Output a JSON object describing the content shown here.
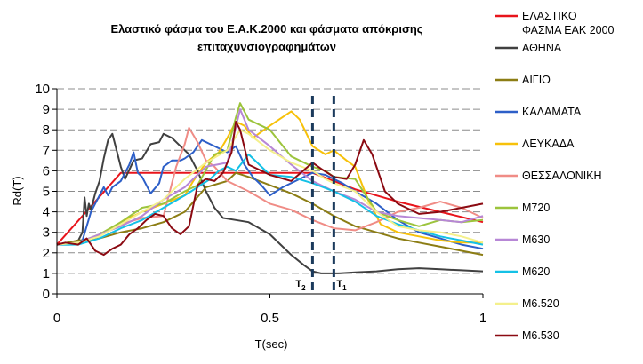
{
  "chart_data": {
    "type": "line",
    "title": [
      "Ελαστικό φάσμα του Ε.Α.Κ.2000 και φάσματα απόκρισης",
      "επιταχυνσιογραφημάτων"
    ],
    "xlabel": "T(sec)",
    "ylabel": "Rd(T)",
    "xlim": [
      0,
      1
    ],
    "ylim": [
      0,
      10
    ],
    "xticks": [
      0,
      0.5,
      1
    ],
    "xtick_labels": [
      "0",
      "0.5",
      "1"
    ],
    "yticks": [
      0,
      1,
      2,
      3,
      4,
      5,
      6,
      7,
      8,
      9,
      10
    ],
    "grid": "horizontal dashed",
    "legend_position": "right",
    "vlines": [
      {
        "x": 0.6,
        "label": "T",
        "subscript": "2"
      },
      {
        "x": 0.65,
        "label": "T",
        "subscript": "1"
      }
    ],
    "series": [
      {
        "name": "ΕΛΑΣΤΙΚΟ ΦΑΣΜΑ ΕΑΚ 2000",
        "color": "#e8141b",
        "points": [
          [
            0,
            2.4
          ],
          [
            0.15,
            5.9
          ],
          [
            0.6,
            5.9
          ],
          [
            0.65,
            5.5
          ],
          [
            0.7,
            5.1
          ],
          [
            0.8,
            4.5
          ],
          [
            0.9,
            4.0
          ],
          [
            1.0,
            3.5
          ]
        ]
      },
      {
        "name": "ΑΘΗΝΑ",
        "color": "#404040",
        "points": [
          [
            0,
            2.4
          ],
          [
            0.03,
            2.5
          ],
          [
            0.05,
            2.6
          ],
          [
            0.06,
            3.0
          ],
          [
            0.065,
            4.7
          ],
          [
            0.07,
            3.8
          ],
          [
            0.075,
            4.4
          ],
          [
            0.08,
            4.1
          ],
          [
            0.09,
            4.9
          ],
          [
            0.1,
            5.5
          ],
          [
            0.11,
            6.6
          ],
          [
            0.12,
            7.5
          ],
          [
            0.13,
            7.8
          ],
          [
            0.14,
            7.0
          ],
          [
            0.15,
            6.2
          ],
          [
            0.16,
            5.6
          ],
          [
            0.18,
            6.5
          ],
          [
            0.2,
            6.6
          ],
          [
            0.22,
            7.3
          ],
          [
            0.24,
            7.4
          ],
          [
            0.25,
            7.8
          ],
          [
            0.27,
            7.6
          ],
          [
            0.29,
            7.2
          ],
          [
            0.31,
            6.8
          ],
          [
            0.33,
            6.0
          ],
          [
            0.35,
            5.0
          ],
          [
            0.37,
            4.2
          ],
          [
            0.39,
            3.7
          ],
          [
            0.42,
            3.6
          ],
          [
            0.45,
            3.5
          ],
          [
            0.5,
            2.9
          ],
          [
            0.55,
            1.9
          ],
          [
            0.58,
            1.4
          ],
          [
            0.6,
            1.1
          ],
          [
            0.62,
            1.0
          ],
          [
            0.66,
            1.0
          ],
          [
            0.7,
            1.05
          ],
          [
            0.75,
            1.1
          ],
          [
            0.8,
            1.2
          ],
          [
            0.85,
            1.25
          ],
          [
            0.9,
            1.2
          ],
          [
            0.95,
            1.15
          ],
          [
            1.0,
            1.1
          ]
        ]
      },
      {
        "name": "ΑΙΓΙΟ",
        "color": "#8c7d14",
        "points": [
          [
            0,
            2.4
          ],
          [
            0.05,
            2.6
          ],
          [
            0.1,
            2.7
          ],
          [
            0.15,
            3.0
          ],
          [
            0.2,
            3.2
          ],
          [
            0.25,
            3.5
          ],
          [
            0.3,
            4.0
          ],
          [
            0.35,
            5.2
          ],
          [
            0.4,
            5.5
          ],
          [
            0.42,
            5.9
          ],
          [
            0.45,
            5.7
          ],
          [
            0.5,
            5.3
          ],
          [
            0.55,
            4.9
          ],
          [
            0.6,
            4.4
          ],
          [
            0.65,
            3.8
          ],
          [
            0.7,
            3.3
          ],
          [
            0.75,
            3.0
          ],
          [
            0.8,
            2.7
          ],
          [
            0.85,
            2.5
          ],
          [
            0.9,
            2.3
          ],
          [
            0.95,
            2.1
          ],
          [
            1.0,
            1.9
          ]
        ]
      },
      {
        "name": "ΚΑΛΑΜΑΤΑ",
        "color": "#2d5fc8",
        "points": [
          [
            0,
            2.4
          ],
          [
            0.03,
            2.4
          ],
          [
            0.06,
            2.6
          ],
          [
            0.08,
            4.0
          ],
          [
            0.1,
            4.8
          ],
          [
            0.11,
            5.2
          ],
          [
            0.12,
            4.8
          ],
          [
            0.13,
            5.2
          ],
          [
            0.15,
            5.5
          ],
          [
            0.17,
            6.3
          ],
          [
            0.18,
            6.9
          ],
          [
            0.19,
            5.9
          ],
          [
            0.2,
            5.7
          ],
          [
            0.22,
            4.9
          ],
          [
            0.24,
            5.4
          ],
          [
            0.25,
            6.2
          ],
          [
            0.27,
            6.5
          ],
          [
            0.29,
            6.5
          ],
          [
            0.3,
            6.6
          ],
          [
            0.32,
            6.9
          ],
          [
            0.34,
            7.5
          ],
          [
            0.36,
            7.3
          ],
          [
            0.38,
            7.1
          ],
          [
            0.4,
            6.9
          ],
          [
            0.42,
            7.2
          ],
          [
            0.44,
            6.3
          ],
          [
            0.46,
            5.7
          ],
          [
            0.48,
            5.3
          ],
          [
            0.5,
            4.8
          ],
          [
            0.53,
            5.2
          ],
          [
            0.57,
            5.6
          ],
          [
            0.6,
            5.9
          ],
          [
            0.63,
            5.8
          ],
          [
            0.67,
            5.4
          ],
          [
            0.7,
            5.0
          ],
          [
            0.75,
            4.4
          ],
          [
            0.8,
            3.6
          ],
          [
            0.85,
            3.0
          ],
          [
            0.9,
            2.7
          ],
          [
            0.95,
            2.4
          ],
          [
            1.0,
            2.2
          ]
        ]
      },
      {
        "name": "ΛΕΥΚΑΔΑ",
        "color": "#f7c10a",
        "points": [
          [
            0,
            2.4
          ],
          [
            0.05,
            2.5
          ],
          [
            0.1,
            2.8
          ],
          [
            0.15,
            3.5
          ],
          [
            0.2,
            4.0
          ],
          [
            0.25,
            4.4
          ],
          [
            0.3,
            4.8
          ],
          [
            0.32,
            5.5
          ],
          [
            0.35,
            6.4
          ],
          [
            0.38,
            6.9
          ],
          [
            0.4,
            7.6
          ],
          [
            0.42,
            8.4
          ],
          [
            0.44,
            8.2
          ],
          [
            0.46,
            7.6
          ],
          [
            0.5,
            8.2
          ],
          [
            0.55,
            8.9
          ],
          [
            0.57,
            8.5
          ],
          [
            0.6,
            7.2
          ],
          [
            0.63,
            6.8
          ],
          [
            0.65,
            7.0
          ],
          [
            0.68,
            6.5
          ],
          [
            0.7,
            6.2
          ],
          [
            0.73,
            4.6
          ],
          [
            0.76,
            3.4
          ],
          [
            0.8,
            3.0
          ],
          [
            0.85,
            2.8
          ],
          [
            0.9,
            2.6
          ],
          [
            0.95,
            2.5
          ],
          [
            1.0,
            2.5
          ]
        ]
      },
      {
        "name": "ΘΕΣΣΑΛΟΝΙΚΗ",
        "color": "#f08c86",
        "points": [
          [
            0,
            2.4
          ],
          [
            0.05,
            2.5
          ],
          [
            0.1,
            2.9
          ],
          [
            0.15,
            3.4
          ],
          [
            0.2,
            3.7
          ],
          [
            0.25,
            3.8
          ],
          [
            0.28,
            6.2
          ],
          [
            0.3,
            7.3
          ],
          [
            0.31,
            8.1
          ],
          [
            0.33,
            7.4
          ],
          [
            0.35,
            6.5
          ],
          [
            0.37,
            6.2
          ],
          [
            0.4,
            5.5
          ],
          [
            0.45,
            5.0
          ],
          [
            0.5,
            4.4
          ],
          [
            0.55,
            4.1
          ],
          [
            0.6,
            3.6
          ],
          [
            0.65,
            3.2
          ],
          [
            0.7,
            3.1
          ],
          [
            0.75,
            3.5
          ],
          [
            0.8,
            4.0
          ],
          [
            0.85,
            4.2
          ],
          [
            0.9,
            4.5
          ],
          [
            0.95,
            4.2
          ],
          [
            1.0,
            3.7
          ]
        ]
      },
      {
        "name": "M720",
        "color": "#9cc43c",
        "points": [
          [
            0,
            2.4
          ],
          [
            0.05,
            2.5
          ],
          [
            0.1,
            2.9
          ],
          [
            0.15,
            3.5
          ],
          [
            0.2,
            4.2
          ],
          [
            0.25,
            4.4
          ],
          [
            0.3,
            5.0
          ],
          [
            0.33,
            5.3
          ],
          [
            0.37,
            6.8
          ],
          [
            0.4,
            7.0
          ],
          [
            0.42,
            8.6
          ],
          [
            0.43,
            9.3
          ],
          [
            0.45,
            8.5
          ],
          [
            0.5,
            8.0
          ],
          [
            0.55,
            6.7
          ],
          [
            0.6,
            6.2
          ],
          [
            0.63,
            6.0
          ],
          [
            0.65,
            5.7
          ],
          [
            0.7,
            5.6
          ],
          [
            0.75,
            4.0
          ],
          [
            0.8,
            3.6
          ],
          [
            0.85,
            3.3
          ],
          [
            0.9,
            3.6
          ],
          [
            0.95,
            3.5
          ],
          [
            1.0,
            3.6
          ]
        ]
      },
      {
        "name": "M630",
        "color": "#b787d6",
        "points": [
          [
            0,
            2.4
          ],
          [
            0.05,
            2.5
          ],
          [
            0.1,
            2.9
          ],
          [
            0.15,
            3.3
          ],
          [
            0.2,
            3.8
          ],
          [
            0.25,
            4.6
          ],
          [
            0.3,
            5.2
          ],
          [
            0.35,
            6.2
          ],
          [
            0.4,
            6.4
          ],
          [
            0.43,
            9.0
          ],
          [
            0.45,
            8.0
          ],
          [
            0.5,
            7.2
          ],
          [
            0.55,
            6.3
          ],
          [
            0.6,
            5.5
          ],
          [
            0.65,
            5.0
          ],
          [
            0.7,
            4.6
          ],
          [
            0.75,
            4.0
          ],
          [
            0.8,
            3.8
          ],
          [
            0.85,
            3.7
          ],
          [
            0.9,
            3.6
          ],
          [
            0.95,
            3.5
          ],
          [
            1.0,
            3.8
          ]
        ]
      },
      {
        "name": "M620",
        "color": "#14c1e6",
        "points": [
          [
            0,
            2.4
          ],
          [
            0.05,
            2.4
          ],
          [
            0.1,
            2.7
          ],
          [
            0.15,
            3.2
          ],
          [
            0.2,
            3.6
          ],
          [
            0.25,
            4.2
          ],
          [
            0.3,
            4.8
          ],
          [
            0.33,
            5.2
          ],
          [
            0.36,
            5.6
          ],
          [
            0.38,
            6.0
          ],
          [
            0.4,
            6.2
          ],
          [
            0.42,
            6.0
          ],
          [
            0.45,
            6.8
          ],
          [
            0.5,
            5.8
          ],
          [
            0.55,
            5.7
          ],
          [
            0.6,
            5.4
          ],
          [
            0.65,
            5.0
          ],
          [
            0.7,
            4.5
          ],
          [
            0.75,
            3.8
          ],
          [
            0.8,
            3.4
          ],
          [
            0.85,
            3.1
          ],
          [
            0.9,
            2.8
          ],
          [
            0.95,
            2.6
          ],
          [
            1.0,
            2.4
          ]
        ]
      },
      {
        "name": "M6.520",
        "color": "#f4f08c",
        "points": [
          [
            0,
            2.4
          ],
          [
            0.05,
            2.5
          ],
          [
            0.1,
            2.8
          ],
          [
            0.15,
            3.4
          ],
          [
            0.2,
            4.0
          ],
          [
            0.25,
            4.6
          ],
          [
            0.3,
            5.6
          ],
          [
            0.35,
            6.4
          ],
          [
            0.4,
            7.0
          ],
          [
            0.43,
            8.0
          ],
          [
            0.45,
            7.8
          ],
          [
            0.5,
            7.0
          ],
          [
            0.55,
            6.4
          ],
          [
            0.6,
            6.0
          ],
          [
            0.63,
            5.6
          ],
          [
            0.65,
            5.4
          ],
          [
            0.7,
            5.0
          ],
          [
            0.75,
            4.0
          ],
          [
            0.8,
            3.3
          ],
          [
            0.85,
            3.1
          ],
          [
            0.9,
            3.0
          ],
          [
            0.95,
            2.8
          ],
          [
            1.0,
            2.5
          ]
        ]
      },
      {
        "name": "M6.530",
        "color": "#8b0a12",
        "points": [
          [
            0,
            2.4
          ],
          [
            0.02,
            2.5
          ],
          [
            0.05,
            2.4
          ],
          [
            0.07,
            2.7
          ],
          [
            0.09,
            2.1
          ],
          [
            0.11,
            1.9
          ],
          [
            0.13,
            2.2
          ],
          [
            0.15,
            2.4
          ],
          [
            0.17,
            2.9
          ],
          [
            0.19,
            3.2
          ],
          [
            0.21,
            3.6
          ],
          [
            0.23,
            3.9
          ],
          [
            0.25,
            3.8
          ],
          [
            0.27,
            3.2
          ],
          [
            0.29,
            2.9
          ],
          [
            0.31,
            3.3
          ],
          [
            0.33,
            5.3
          ],
          [
            0.35,
            5.6
          ],
          [
            0.37,
            5.5
          ],
          [
            0.39,
            5.9
          ],
          [
            0.41,
            6.9
          ],
          [
            0.42,
            8.4
          ],
          [
            0.43,
            8.0
          ],
          [
            0.45,
            6.3
          ],
          [
            0.5,
            5.8
          ],
          [
            0.55,
            5.5
          ],
          [
            0.6,
            6.4
          ],
          [
            0.62,
            6.1
          ],
          [
            0.65,
            5.7
          ],
          [
            0.68,
            5.6
          ],
          [
            0.7,
            6.3
          ],
          [
            0.72,
            7.5
          ],
          [
            0.74,
            6.8
          ],
          [
            0.77,
            5.0
          ],
          [
            0.8,
            4.4
          ],
          [
            0.85,
            3.9
          ],
          [
            0.9,
            4.0
          ],
          [
            0.95,
            4.2
          ],
          [
            1.0,
            4.4
          ]
        ]
      }
    ]
  }
}
